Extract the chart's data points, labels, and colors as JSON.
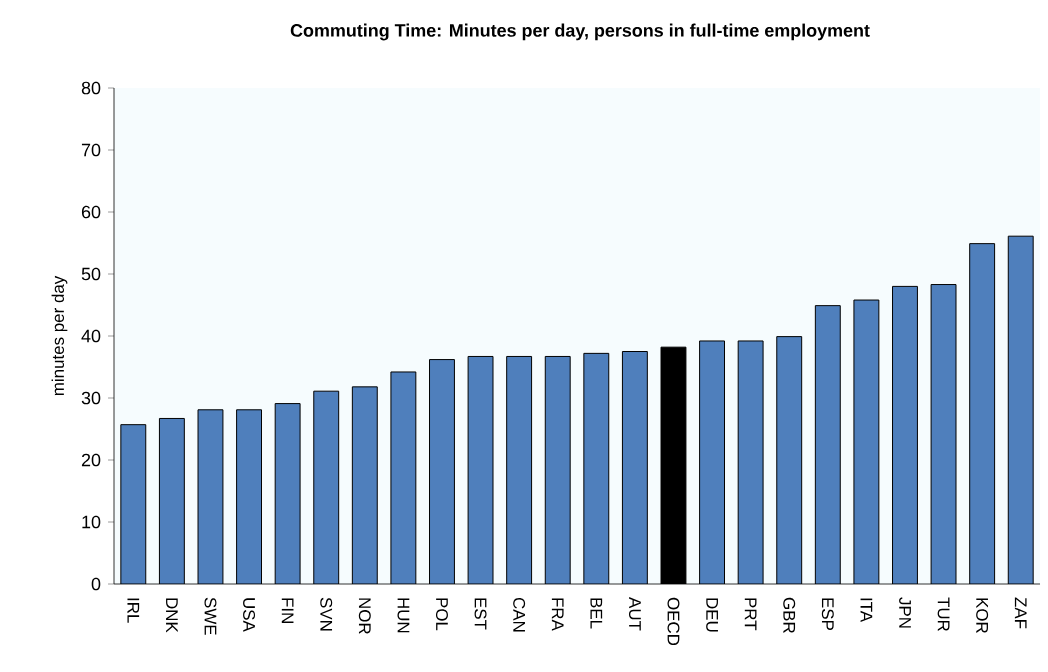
{
  "chart_data": {
    "type": "bar",
    "title": "Commuting Time: Minutes per day, persons in full-time employment",
    "ylabel": "minutes per day",
    "categories": [
      "IRL",
      "DNK",
      "SWE",
      "USA",
      "FIN",
      "SVN",
      "NOR",
      "HUN",
      "POL",
      "EST",
      "CAN",
      "FRA",
      "BEL",
      "AUT",
      "OECD",
      "DEU",
      "PRT",
      "GBR",
      "ESP",
      "ITA",
      "JPN",
      "TUR",
      "KOR",
      "ZAF"
    ],
    "values": [
      25.7,
      26.7,
      28.1,
      28.1,
      29.1,
      31.1,
      31.8,
      34.2,
      36.2,
      36.7,
      36.7,
      36.7,
      37.2,
      37.5,
      38.2,
      39.2,
      39.2,
      39.9,
      44.9,
      45.8,
      48.0,
      48.3,
      54.9,
      56.1
    ],
    "colors": [
      "#4f7fbc",
      "#4f7fbc",
      "#4f7fbc",
      "#4f7fbc",
      "#4f7fbc",
      "#4f7fbc",
      "#4f7fbc",
      "#4f7fbc",
      "#4f7fbc",
      "#4f7fbc",
      "#4f7fbc",
      "#4f7fbc",
      "#4f7fbc",
      "#4f7fbc",
      "#000000",
      "#4f7fbc",
      "#4f7fbc",
      "#4f7fbc",
      "#4f7fbc",
      "#4f7fbc",
      "#4f7fbc",
      "#4f7fbc",
      "#4f7fbc",
      "#4f7fbc"
    ],
    "ylim": [
      0,
      80
    ],
    "yticks": [
      0,
      10,
      20,
      30,
      40,
      50,
      60,
      70,
      80
    ],
    "grid": false
  }
}
